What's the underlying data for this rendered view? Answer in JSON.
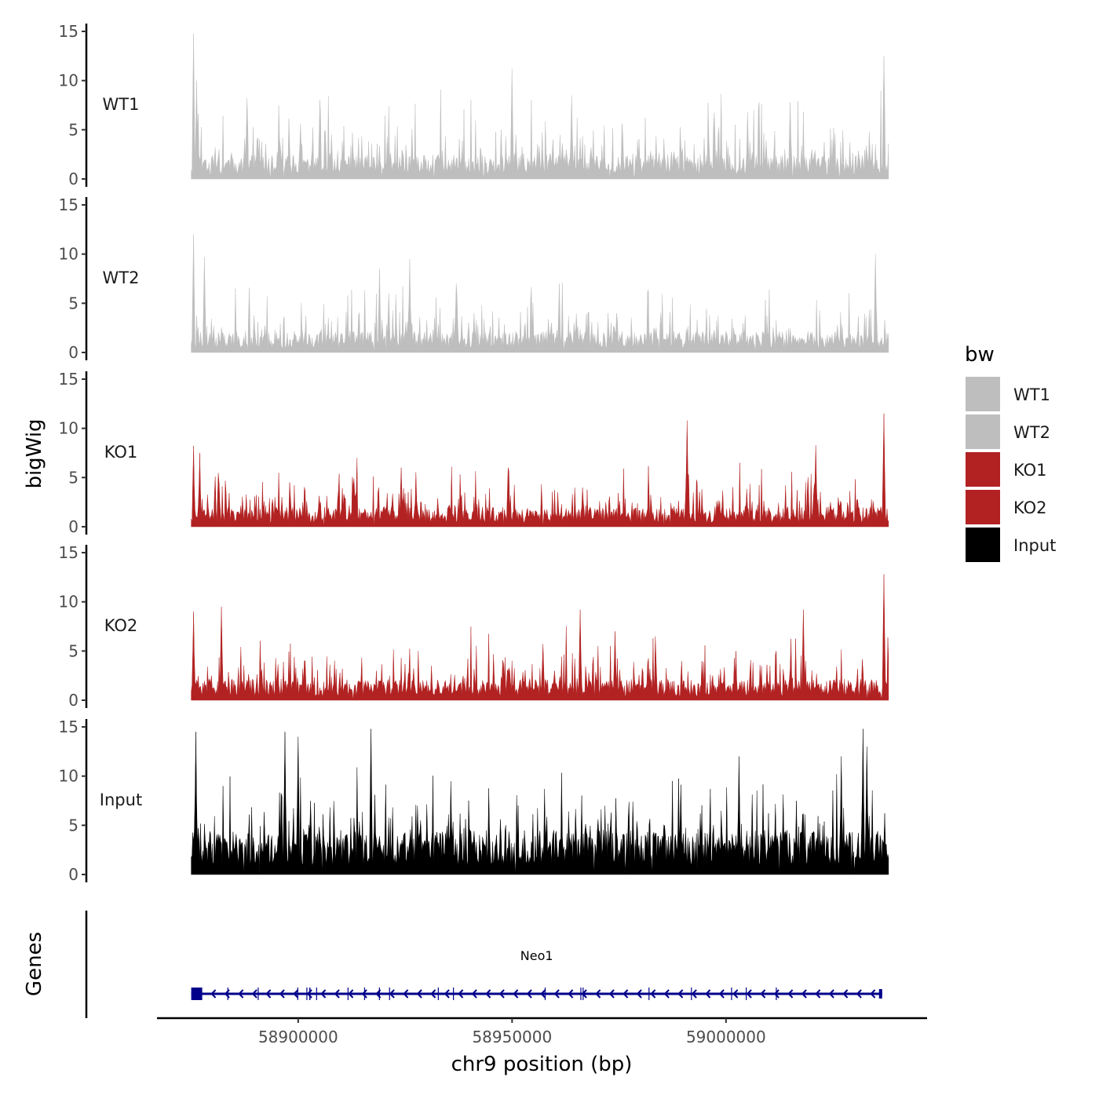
{
  "chart_data": {
    "type": "area",
    "description": "Genome browser coverage tracks (bigWig) with gene annotation",
    "x_axis": {
      "title": "chr9 position (bp)",
      "ticks": [
        58900000,
        58950000,
        59000000
      ],
      "tick_labels": [
        "58900000",
        "58950000",
        "59000000"
      ],
      "data_range": [
        58875000,
        59038000
      ],
      "axis_range": [
        58867000,
        59047000
      ]
    },
    "y_axis": {
      "title": "bigWig",
      "ticks": [
        0,
        5,
        10,
        15
      ],
      "tick_labels": [
        "0",
        "5",
        "10",
        "15"
      ],
      "ylim": [
        0,
        15
      ]
    },
    "tracks": [
      {
        "name": "WT1",
        "color": "#bebebe",
        "baseline": 1.8,
        "peak_max": 15.0,
        "seed": 11,
        "peaks": [
          [
            58875500,
            14.8
          ],
          [
            58876200,
            10.0
          ],
          [
            58888000,
            8.2
          ],
          [
            58905000,
            8.0
          ],
          [
            58950000,
            11.2
          ],
          [
            58964000,
            8.5
          ],
          [
            59015000,
            7.8
          ],
          [
            59037000,
            12.5
          ]
        ]
      },
      {
        "name": "WT2",
        "color": "#bebebe",
        "baseline": 1.6,
        "peak_max": 12.0,
        "seed": 23,
        "peaks": [
          [
            58875500,
            12.0
          ],
          [
            58878000,
            9.7
          ],
          [
            58919000,
            8.5
          ],
          [
            58926000,
            9.5
          ],
          [
            58937000,
            7.0
          ],
          [
            58961000,
            7.0
          ],
          [
            59035000,
            10.0
          ]
        ]
      },
      {
        "name": "KO1",
        "color": "#b22222",
        "baseline": 1.5,
        "peak_max": 11.5,
        "seed": 37,
        "peaks": [
          [
            58875500,
            8.2
          ],
          [
            58877000,
            7.5
          ],
          [
            58924000,
            6.0
          ],
          [
            58949000,
            6.0
          ],
          [
            58991000,
            10.8
          ],
          [
            59021000,
            8.3
          ],
          [
            59037000,
            11.5
          ]
        ]
      },
      {
        "name": "KO2",
        "color": "#b22222",
        "baseline": 1.6,
        "peak_max": 13.0,
        "seed": 53,
        "peaks": [
          [
            58875500,
            9.0
          ],
          [
            58882000,
            9.5
          ],
          [
            58966000,
            9.2
          ],
          [
            58974000,
            7.0
          ],
          [
            59018000,
            9.2
          ],
          [
            59037000,
            12.8
          ]
        ]
      },
      {
        "name": "Input",
        "color": "#000000",
        "baseline": 3.3,
        "peak_max": 15.0,
        "seed": 71,
        "peaks": [
          [
            58876000,
            14.5
          ],
          [
            58897000,
            14.5
          ],
          [
            58900000,
            14.0
          ],
          [
            58917000,
            14.8
          ],
          [
            59032000,
            14.8
          ],
          [
            59033000,
            13.0
          ],
          [
            59003000,
            12.0
          ],
          [
            59027000,
            12.0
          ]
        ]
      }
    ],
    "gene_track": {
      "title": "Genes",
      "genes": [
        {
          "name": "Neo1",
          "start": 58875000,
          "end": 59036500,
          "strand": "-",
          "color": "#00008b"
        }
      ]
    },
    "legend": {
      "title": "bw",
      "position": "right",
      "entries": [
        {
          "label": "WT1",
          "color": "#bebebe"
        },
        {
          "label": "WT2",
          "color": "#bebebe"
        },
        {
          "label": "KO1",
          "color": "#b22222"
        },
        {
          "label": "KO2",
          "color": "#b22222"
        },
        {
          "label": "Input",
          "color": "#000000"
        }
      ]
    }
  }
}
